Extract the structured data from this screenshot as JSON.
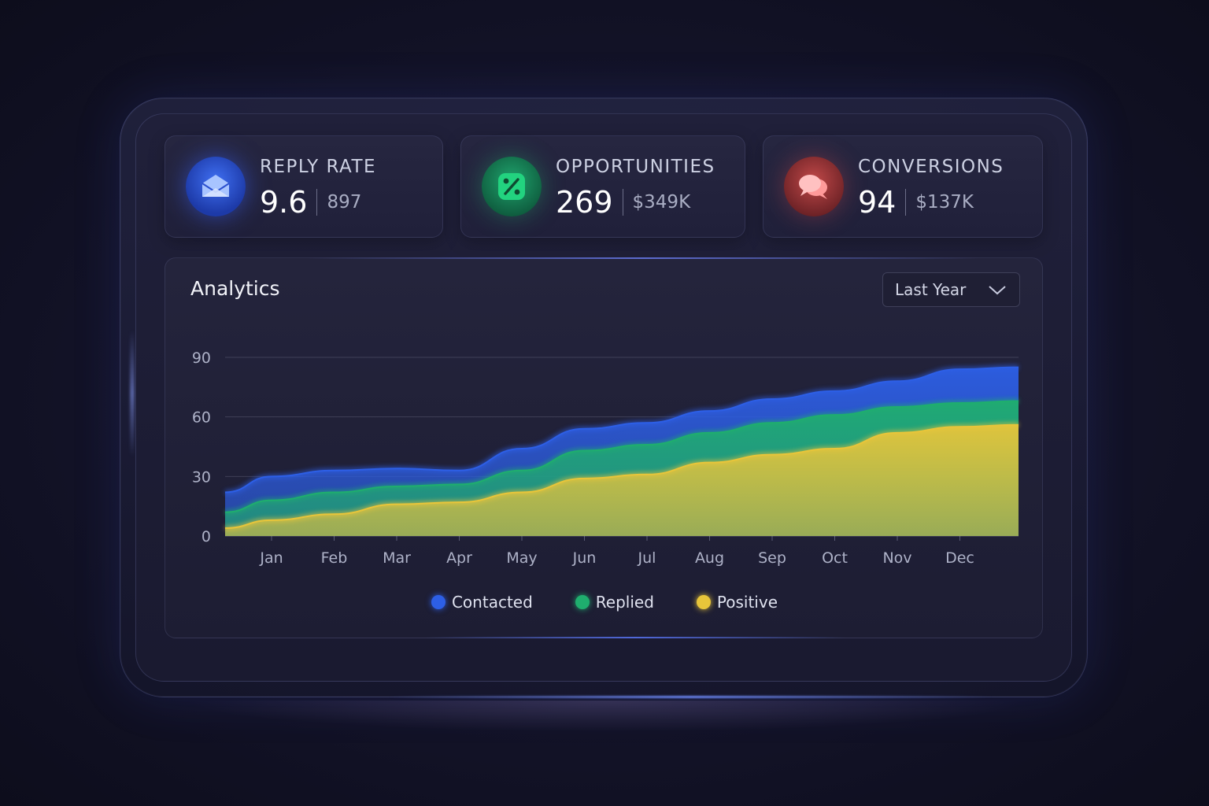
{
  "cards": [
    {
      "label": "REPLY RATE",
      "value": "9.6",
      "sub": "897",
      "icon": "mail-icon",
      "color": "#2f5be0"
    },
    {
      "label": "OPPORTUNITIES",
      "value": "269",
      "sub": "$349K",
      "icon": "percent-icon",
      "color": "#1dbf73"
    },
    {
      "label": "CONVERSIONS",
      "value": "94",
      "sub": "$137K",
      "icon": "chat-bubbles-icon",
      "color": "#e05555"
    }
  ],
  "analytics": {
    "title": "Analytics",
    "period": "Last Year"
  },
  "chart_data": {
    "type": "area",
    "stacked": false,
    "categories": [
      "Jan",
      "Feb",
      "Mar",
      "Apr",
      "May",
      "Jun",
      "Jul",
      "Aug",
      "Sep",
      "Oct",
      "Nov",
      "Dec"
    ],
    "ylim": [
      0,
      90
    ],
    "yticks": [
      0,
      30,
      60,
      90
    ],
    "grid": true,
    "legend_position": "bottom-center",
    "series": [
      {
        "name": "Contacted",
        "color": "#2d5fe6",
        "values": [
          30,
          33,
          34,
          33,
          44,
          54,
          57,
          63,
          69,
          73,
          78,
          84
        ]
      },
      {
        "name": "Replied",
        "color": "#1fae6e",
        "values": [
          18,
          22,
          25,
          26,
          33,
          43,
          46,
          52,
          57,
          61,
          65,
          67
        ]
      },
      {
        "name": "Positive",
        "color": "#e8c53a",
        "values": [
          8,
          11,
          16,
          17,
          22,
          29,
          31,
          37,
          41,
          44,
          52,
          55
        ]
      }
    ],
    "x_start_value": {
      "Contacted": 22,
      "Replied": 12,
      "Positive": 4
    }
  }
}
